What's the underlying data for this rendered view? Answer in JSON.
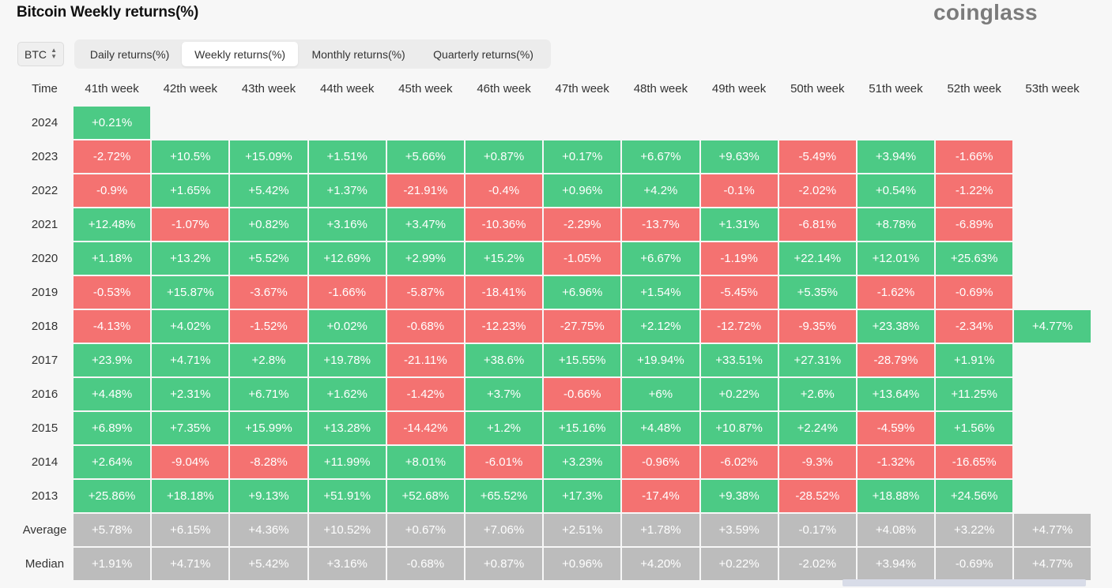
{
  "title": "Bitcoin Weekly returns(%)",
  "logo": "coinglass",
  "coin_select": {
    "value": "BTC",
    "icon": "chevron-up-down-icon"
  },
  "tabs": [
    {
      "label": "Daily returns(%)",
      "active": false
    },
    {
      "label": "Weekly returns(%)",
      "active": true
    },
    {
      "label": "Monthly returns(%)",
      "active": false
    },
    {
      "label": "Quarterly returns(%)",
      "active": false
    }
  ],
  "colors": {
    "positive": "#4cca85",
    "negative": "#f47271",
    "summary": "#bcbcbc"
  },
  "table": {
    "time_header": "Time",
    "columns": [
      "41th week",
      "42th week",
      "43th week",
      "44th week",
      "45th week",
      "46th week",
      "47th week",
      "48th week",
      "49th week",
      "50th week",
      "51th week",
      "52th week",
      "53th week"
    ],
    "rows": [
      {
        "label": "2024",
        "values": [
          "+0.21%",
          "",
          "",
          "",
          "",
          "",
          "",
          "",
          "",
          "",
          "",
          "",
          ""
        ]
      },
      {
        "label": "2023",
        "values": [
          "-2.72%",
          "+10.5%",
          "+15.09%",
          "+1.51%",
          "+5.66%",
          "+0.87%",
          "+0.17%",
          "+6.67%",
          "+9.63%",
          "-5.49%",
          "+3.94%",
          "-1.66%",
          ""
        ]
      },
      {
        "label": "2022",
        "values": [
          "-0.9%",
          "+1.65%",
          "+5.42%",
          "+1.37%",
          "-21.91%",
          "-0.4%",
          "+0.96%",
          "+4.2%",
          "-0.1%",
          "-2.02%",
          "+0.54%",
          "-1.22%",
          ""
        ]
      },
      {
        "label": "2021",
        "values": [
          "+12.48%",
          "-1.07%",
          "+0.82%",
          "+3.16%",
          "+3.47%",
          "-10.36%",
          "-2.29%",
          "-13.7%",
          "+1.31%",
          "-6.81%",
          "+8.78%",
          "-6.89%",
          ""
        ]
      },
      {
        "label": "2020",
        "values": [
          "+1.18%",
          "+13.2%",
          "+5.52%",
          "+12.69%",
          "+2.99%",
          "+15.2%",
          "-1.05%",
          "+6.67%",
          "-1.19%",
          "+22.14%",
          "+12.01%",
          "+25.63%",
          ""
        ]
      },
      {
        "label": "2019",
        "values": [
          "-0.53%",
          "+15.87%",
          "-3.67%",
          "-1.66%",
          "-5.87%",
          "-18.41%",
          "+6.96%",
          "+1.54%",
          "-5.45%",
          "+5.35%",
          "-1.62%",
          "-0.69%",
          ""
        ]
      },
      {
        "label": "2018",
        "values": [
          "-4.13%",
          "+4.02%",
          "-1.52%",
          "+0.02%",
          "-0.68%",
          "-12.23%",
          "-27.75%",
          "+2.12%",
          "-12.72%",
          "-9.35%",
          "+23.38%",
          "-2.34%",
          "+4.77%"
        ]
      },
      {
        "label": "2017",
        "values": [
          "+23.9%",
          "+4.71%",
          "+2.8%",
          "+19.78%",
          "-21.11%",
          "+38.6%",
          "+15.55%",
          "+19.94%",
          "+33.51%",
          "+27.31%",
          "-28.79%",
          "+1.91%",
          ""
        ]
      },
      {
        "label": "2016",
        "values": [
          "+4.48%",
          "+2.31%",
          "+6.71%",
          "+1.62%",
          "-1.42%",
          "+3.7%",
          "-0.66%",
          "+6%",
          "+0.22%",
          "+2.6%",
          "+13.64%",
          "+11.25%",
          ""
        ]
      },
      {
        "label": "2015",
        "values": [
          "+6.89%",
          "+7.35%",
          "+15.99%",
          "+13.28%",
          "-14.42%",
          "+1.2%",
          "+15.16%",
          "+4.48%",
          "+10.87%",
          "+2.24%",
          "-4.59%",
          "+1.56%",
          ""
        ]
      },
      {
        "label": "2014",
        "values": [
          "+2.64%",
          "-9.04%",
          "-8.28%",
          "+11.99%",
          "+8.01%",
          "-6.01%",
          "+3.23%",
          "-0.96%",
          "-6.02%",
          "-9.3%",
          "-1.32%",
          "-16.65%",
          ""
        ]
      },
      {
        "label": "2013",
        "values": [
          "+25.86%",
          "+18.18%",
          "+9.13%",
          "+51.91%",
          "+52.68%",
          "+65.52%",
          "+17.3%",
          "-17.4%",
          "+9.38%",
          "-28.52%",
          "+18.88%",
          "+24.56%",
          ""
        ]
      }
    ],
    "summary_rows": [
      {
        "label": "Average",
        "values": [
          "+5.78%",
          "+6.15%",
          "+4.36%",
          "+10.52%",
          "+0.67%",
          "+7.06%",
          "+2.51%",
          "+1.78%",
          "+3.59%",
          "-0.17%",
          "+4.08%",
          "+3.22%",
          "+4.77%"
        ]
      },
      {
        "label": "Median",
        "values": [
          "+1.91%",
          "+4.71%",
          "+5.42%",
          "+3.16%",
          "-0.68%",
          "+0.87%",
          "+0.96%",
          "+4.20%",
          "+0.22%",
          "-2.02%",
          "+3.94%",
          "-0.69%",
          "+4.77%"
        ]
      }
    ]
  }
}
